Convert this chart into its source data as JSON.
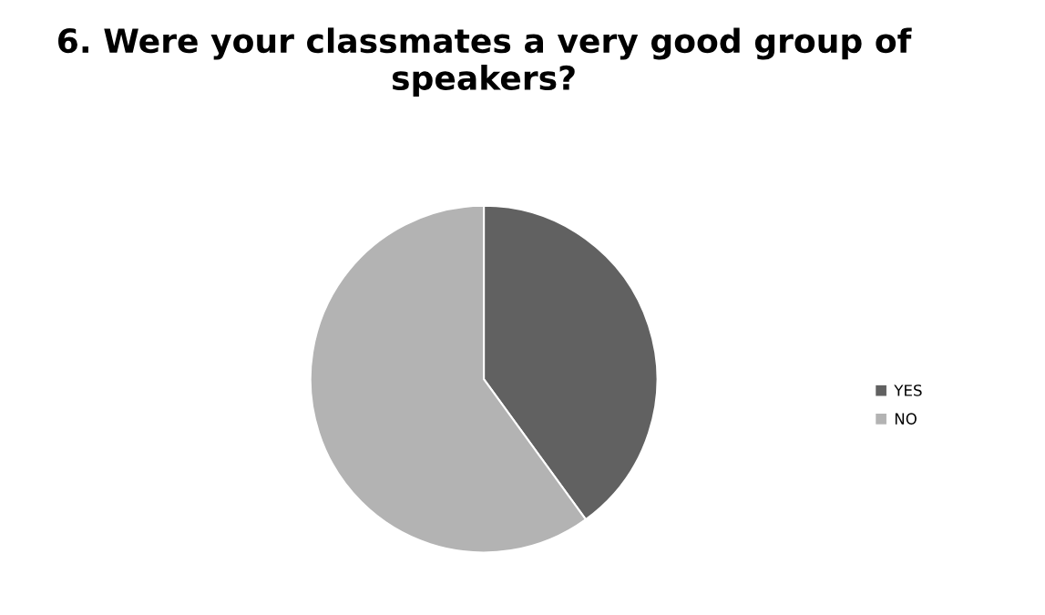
{
  "chart_data": {
    "type": "pie",
    "title": "6. Were your classmates a very good group of speakers?",
    "categories": [
      "YES",
      "NO"
    ],
    "values": [
      40,
      60
    ],
    "colors": [
      "#616161",
      "#b3b3b3"
    ],
    "legend": "right"
  }
}
